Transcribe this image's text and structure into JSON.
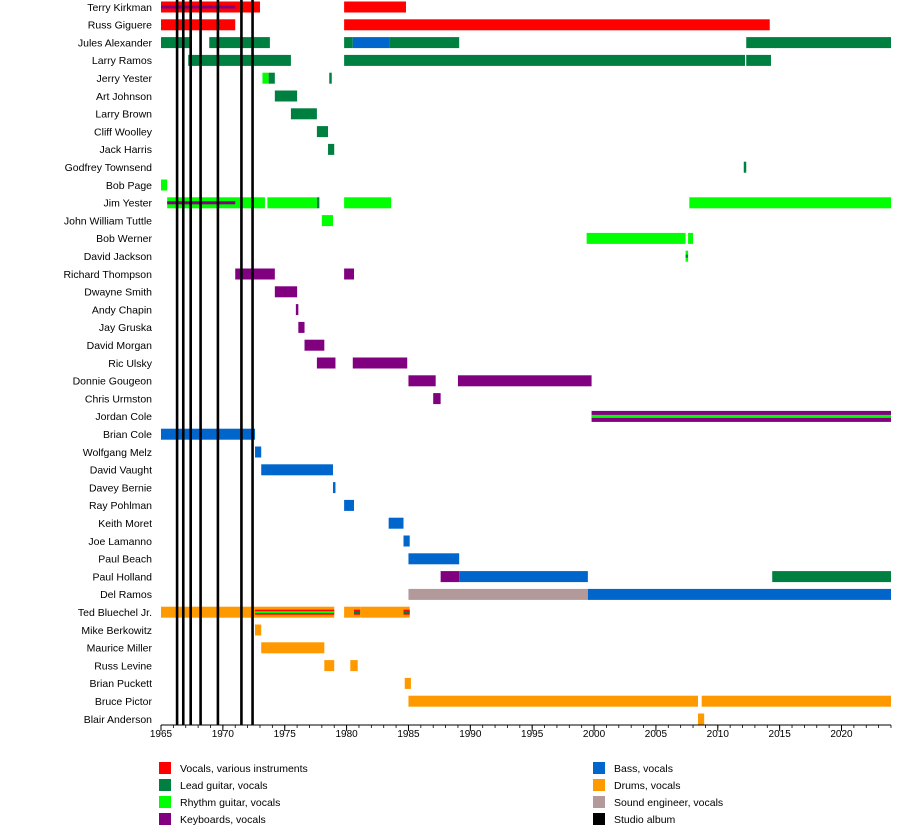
{
  "chart_data": {
    "type": "timeline",
    "title": "",
    "xlabel": "",
    "ylabel": "",
    "xlim": [
      1965,
      2024
    ],
    "ticks": [
      1965,
      1970,
      1975,
      1980,
      1985,
      1990,
      1995,
      2000,
      2005,
      2010,
      2015,
      2020
    ],
    "tick_labels": [
      "1965",
      "1970",
      "1975",
      "1980",
      "1985",
      "1990",
      "1995",
      "2000",
      "2005",
      "2010",
      "2015",
      "2020"
    ],
    "colors": {
      "vocals": "#ff0000",
      "lead": "#008040",
      "rhythm": "#00ff00",
      "keys": "#800080",
      "bass": "#0066cc",
      "drums": "#ff9900",
      "sound": "#b39999",
      "album": "#000000"
    },
    "legend": [
      {
        "role": "vocals",
        "label": "Vocals, various instruments"
      },
      {
        "role": "lead",
        "label": "Lead guitar, vocals"
      },
      {
        "role": "rhythm",
        "label": "Rhythm guitar, vocals"
      },
      {
        "role": "keys",
        "label": "Keyboards, vocals"
      },
      {
        "role": "bass",
        "label": "Bass, vocals"
      },
      {
        "role": "drums",
        "label": "Drums, vocals"
      },
      {
        "role": "sound",
        "label": "Sound engineer, vocals"
      },
      {
        "role": "album",
        "label": "Studio album"
      }
    ],
    "albums": [
      1966.3,
      1966.8,
      1967.4,
      1968.2,
      1969.6,
      1971.5,
      1972.4
    ],
    "members": [
      {
        "name": "Terry Kirkman",
        "periods": [
          {
            "start": 1965,
            "end": 1973.0,
            "role": "vocals",
            "secondary": "keys",
            "sec_start": 1965,
            "sec_end": 1971.0
          },
          {
            "start": 1979.8,
            "end": 1984.8,
            "role": "vocals"
          }
        ]
      },
      {
        "name": "Russ Giguere",
        "periods": [
          {
            "start": 1965,
            "end": 1971.0,
            "role": "vocals"
          },
          {
            "start": 1979.8,
            "end": 2014.2,
            "role": "vocals"
          }
        ]
      },
      {
        "name": "Jules Alexander",
        "periods": [
          {
            "start": 1965,
            "end": 1967.4,
            "role": "lead"
          },
          {
            "start": 1968.9,
            "end": 1973.8,
            "role": "lead"
          },
          {
            "start": 1979.8,
            "end": 1980.5,
            "role": "lead"
          },
          {
            "start": 1980.5,
            "end": 1983.5,
            "role": "bass"
          },
          {
            "start": 1983.5,
            "end": 1989.1,
            "role": "lead"
          },
          {
            "start": 2012.3,
            "end": 2024,
            "role": "lead"
          }
        ]
      },
      {
        "name": "Larry Ramos",
        "periods": [
          {
            "start": 1967.2,
            "end": 1975.5,
            "role": "lead"
          },
          {
            "start": 1979.8,
            "end": 2012.2,
            "role": "lead"
          },
          {
            "start": 2012.3,
            "end": 2014.3,
            "role": "lead"
          }
        ]
      },
      {
        "name": "Jerry Yester",
        "periods": [
          {
            "start": 1973.2,
            "end": 1973.7,
            "role": "rhythm"
          },
          {
            "start": 1973.7,
            "end": 1974.2,
            "role": "lead"
          },
          {
            "start": 1978.6,
            "end": 1978.8,
            "role": "lead"
          }
        ]
      },
      {
        "name": "Art Johnson",
        "periods": [
          {
            "start": 1974.2,
            "end": 1976.0,
            "role": "lead"
          }
        ]
      },
      {
        "name": "Larry Brown",
        "periods": [
          {
            "start": 1975.5,
            "end": 1977.6,
            "role": "lead"
          }
        ]
      },
      {
        "name": "Cliff Woolley",
        "periods": [
          {
            "start": 1977.6,
            "end": 1978.5,
            "role": "lead"
          }
        ]
      },
      {
        "name": "Jack Harris",
        "periods": [
          {
            "start": 1978.5,
            "end": 1979.0,
            "role": "lead"
          }
        ]
      },
      {
        "name": "Godfrey Townsend",
        "periods": [
          {
            "start": 2012.1,
            "end": 2012.3,
            "role": "lead"
          }
        ]
      },
      {
        "name": "Bob Page",
        "periods": [
          {
            "start": 1965,
            "end": 1965.5,
            "role": "rhythm"
          }
        ]
      },
      {
        "name": "Jim Yester",
        "periods": [
          {
            "start": 1965.5,
            "end": 1973.4,
            "role": "rhythm",
            "secondary": "keys",
            "sec_start": 1965.5,
            "sec_end": 1971.0
          },
          {
            "start": 1973.6,
            "end": 1977.6,
            "role": "rhythm"
          },
          {
            "start": 1977.6,
            "end": 1977.8,
            "role": "lead"
          },
          {
            "start": 1979.8,
            "end": 1983.6,
            "role": "rhythm"
          },
          {
            "start": 2007.7,
            "end": 2024,
            "role": "rhythm"
          }
        ]
      },
      {
        "name": "John William Tuttle",
        "periods": [
          {
            "start": 1978.0,
            "end": 1978.9,
            "role": "rhythm"
          }
        ]
      },
      {
        "name": "Bob Werner",
        "periods": [
          {
            "start": 1999.4,
            "end": 2007.4,
            "role": "rhythm"
          },
          {
            "start": 2007.6,
            "end": 2008.0,
            "role": "rhythm"
          }
        ]
      },
      {
        "name": "David Jackson",
        "periods": [
          {
            "start": 2007.4,
            "end": 2007.6,
            "role": "rhythm",
            "secondary": "lead",
            "sec_start": 2007.4,
            "sec_end": 2007.6
          }
        ]
      },
      {
        "name": "Richard Thompson",
        "periods": [
          {
            "start": 1971.0,
            "end": 1974.2,
            "role": "keys"
          },
          {
            "start": 1979.8,
            "end": 1980.6,
            "role": "keys"
          }
        ]
      },
      {
        "name": "Dwayne Smith",
        "periods": [
          {
            "start": 1974.2,
            "end": 1976.0,
            "role": "keys"
          }
        ]
      },
      {
        "name": "Andy Chapin",
        "periods": [
          {
            "start": 1975.9,
            "end": 1976.1,
            "role": "keys"
          }
        ]
      },
      {
        "name": "Jay Gruska",
        "periods": [
          {
            "start": 1976.1,
            "end": 1976.6,
            "role": "keys"
          }
        ]
      },
      {
        "name": "David Morgan",
        "periods": [
          {
            "start": 1976.6,
            "end": 1978.2,
            "role": "keys"
          }
        ]
      },
      {
        "name": "Ric Ulsky",
        "periods": [
          {
            "start": 1977.6,
            "end": 1979.1,
            "role": "keys"
          },
          {
            "start": 1980.5,
            "end": 1984.9,
            "role": "keys"
          }
        ]
      },
      {
        "name": "Donnie Gougeon",
        "periods": [
          {
            "start": 1985.0,
            "end": 1987.2,
            "role": "keys"
          },
          {
            "start": 1989.0,
            "end": 1999.8,
            "role": "keys"
          }
        ]
      },
      {
        "name": "Chris Urmston",
        "periods": [
          {
            "start": 1987.0,
            "end": 1987.6,
            "role": "keys"
          }
        ]
      },
      {
        "name": "Jordan Cole",
        "periods": [
          {
            "start": 1999.8,
            "end": 2024,
            "role": "keys",
            "secondary": "rhythm",
            "sec_start": 1999.8,
            "sec_end": 2024
          }
        ]
      },
      {
        "name": "Brian Cole",
        "periods": [
          {
            "start": 1965,
            "end": 1972.6,
            "role": "bass"
          }
        ]
      },
      {
        "name": "Wolfgang Melz",
        "periods": [
          {
            "start": 1972.6,
            "end": 1973.1,
            "role": "bass"
          }
        ]
      },
      {
        "name": "David Vaught",
        "periods": [
          {
            "start": 1973.1,
            "end": 1978.9,
            "role": "bass"
          }
        ]
      },
      {
        "name": "Davey Bernie",
        "periods": [
          {
            "start": 1978.9,
            "end": 1979.1,
            "role": "bass"
          }
        ]
      },
      {
        "name": "Ray Pohlman",
        "periods": [
          {
            "start": 1979.8,
            "end": 1980.6,
            "role": "bass"
          }
        ]
      },
      {
        "name": "Keith Moret",
        "periods": [
          {
            "start": 1983.4,
            "end": 1984.6,
            "role": "bass"
          }
        ]
      },
      {
        "name": "Joe Lamanno",
        "periods": [
          {
            "start": 1984.6,
            "end": 1985.1,
            "role": "bass"
          }
        ]
      },
      {
        "name": "Paul Beach",
        "periods": [
          {
            "start": 1985.0,
            "end": 1989.1,
            "role": "bass"
          }
        ]
      },
      {
        "name": "Paul Holland",
        "periods": [
          {
            "start": 1987.6,
            "end": 1989.1,
            "role": "keys"
          },
          {
            "start": 1989.1,
            "end": 1999.5,
            "role": "bass"
          },
          {
            "start": 2014.4,
            "end": 2024,
            "role": "lead"
          }
        ]
      },
      {
        "name": "Del Ramos",
        "periods": [
          {
            "start": 1985.0,
            "end": 1999.5,
            "role": "sound"
          },
          {
            "start": 1999.5,
            "end": 2024,
            "role": "bass"
          }
        ]
      },
      {
        "name": "Ted Bluechel Jr.",
        "periods": [
          {
            "start": 1965,
            "end": 1972.6,
            "role": "drums"
          },
          {
            "start": 1972.6,
            "end": 1979.0,
            "role": "drums",
            "secondary": "vocals",
            "sec_start": 1972.6,
            "sec_end": 1979.0,
            "tertiary": "rhythm"
          },
          {
            "start": 1979.8,
            "end": 1980.6,
            "role": "drums"
          },
          {
            "start": 1980.6,
            "end": 1981.1,
            "role": "drums",
            "secondary": "vocals",
            "sec_start": 1980.6,
            "sec_end": 1981.1,
            "tertiary": "lead"
          },
          {
            "start": 1981.1,
            "end": 1984.6,
            "role": "drums"
          },
          {
            "start": 1984.6,
            "end": 1985.1,
            "role": "drums",
            "secondary": "vocals",
            "sec_start": 1984.6,
            "sec_end": 1985.1,
            "tertiary": "lead"
          }
        ]
      },
      {
        "name": "Mike Berkowitz",
        "periods": [
          {
            "start": 1972.6,
            "end": 1973.1,
            "role": "drums"
          }
        ]
      },
      {
        "name": "Maurice Miller",
        "periods": [
          {
            "start": 1973.1,
            "end": 1978.2,
            "role": "drums"
          }
        ]
      },
      {
        "name": "Russ Levine",
        "periods": [
          {
            "start": 1978.2,
            "end": 1979.0,
            "role": "drums"
          },
          {
            "start": 1980.3,
            "end": 1980.9,
            "role": "drums"
          }
        ]
      },
      {
        "name": "Brian Puckett",
        "periods": [
          {
            "start": 1984.7,
            "end": 1985.2,
            "role": "drums"
          }
        ]
      },
      {
        "name": "Bruce Pictor",
        "periods": [
          {
            "start": 1985.0,
            "end": 2008.4,
            "role": "drums"
          },
          {
            "start": 2008.7,
            "end": 2024,
            "role": "drums"
          }
        ]
      },
      {
        "name": "Blair Anderson",
        "periods": [
          {
            "start": 2008.4,
            "end": 2008.9,
            "role": "drums"
          }
        ]
      }
    ]
  }
}
